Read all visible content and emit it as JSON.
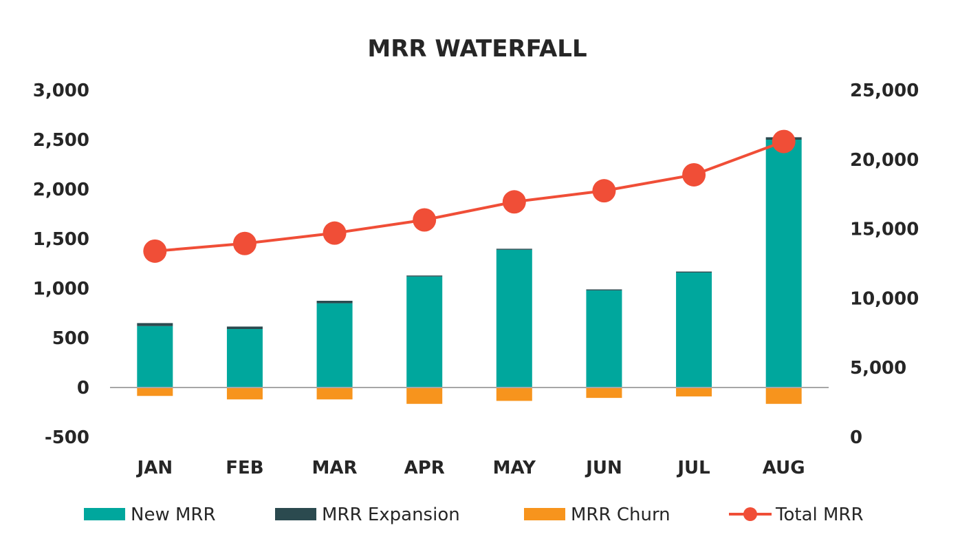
{
  "chart_data": {
    "type": "bar",
    "title": "MRR WATERFALL",
    "categories": [
      "JAN",
      "FEB",
      "MAR",
      "APR",
      "MAY",
      "JUN",
      "JUL",
      "AUG"
    ],
    "series": [
      {
        "name": "New MRR",
        "kind": "bar",
        "axis": "left",
        "color": "#00A79D",
        "values": [
          620,
          590,
          850,
          1120,
          1390,
          980,
          1160,
          2500
        ]
      },
      {
        "name": "MRR Expansion",
        "kind": "bar",
        "axis": "left",
        "color": "#2B4A4F",
        "values": [
          30,
          25,
          25,
          10,
          10,
          10,
          10,
          25
        ]
      },
      {
        "name": "MRR Churn",
        "kind": "bar",
        "axis": "left",
        "color": "#F7941D",
        "values": [
          -85,
          -120,
          -120,
          -165,
          -135,
          -105,
          -90,
          -165
        ]
      },
      {
        "name": "Total MRR",
        "kind": "line",
        "axis": "right",
        "color": "#F04E37",
        "values": [
          13400,
          13950,
          14700,
          15650,
          16950,
          17750,
          18900,
          21300
        ]
      }
    ],
    "y_left": {
      "min": -500,
      "max": 3000,
      "ticks": [
        "3,000",
        "2,500",
        "2,000",
        "1,500",
        "1,000",
        "500",
        "0",
        "-500"
      ],
      "tick_values": [
        3000,
        2500,
        2000,
        1500,
        1000,
        500,
        0,
        -500
      ]
    },
    "y_right": {
      "min": 0,
      "max": 25000,
      "ticks": [
        "25,000",
        "20,000",
        "15,000",
        "10,000",
        "5,000",
        "0"
      ],
      "tick_values": [
        25000,
        20000,
        15000,
        10000,
        5000,
        0
      ]
    },
    "legend_position": "bottom",
    "grid": false
  }
}
